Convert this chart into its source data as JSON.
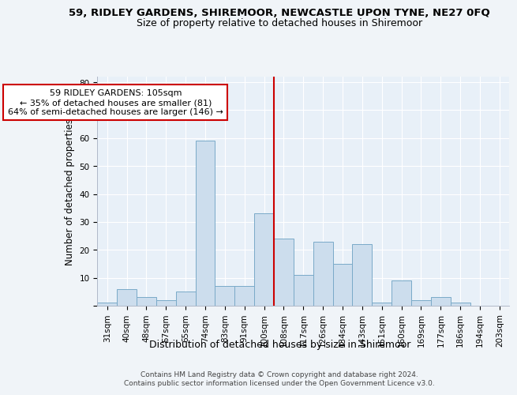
{
  "title": "59, RIDLEY GARDENS, SHIREMOOR, NEWCASTLE UPON TYNE, NE27 0FQ",
  "subtitle": "Size of property relative to detached houses in Shiremoor",
  "xlabel": "Distribution of detached houses by size in Shiremoor",
  "ylabel": "Number of detached properties",
  "categories": [
    "31sqm",
    "40sqm",
    "48sqm",
    "57sqm",
    "65sqm",
    "74sqm",
    "83sqm",
    "91sqm",
    "100sqm",
    "108sqm",
    "117sqm",
    "126sqm",
    "134sqm",
    "143sqm",
    "151sqm",
    "160sqm",
    "169sqm",
    "177sqm",
    "186sqm",
    "194sqm",
    "203sqm"
  ],
  "values": [
    1,
    6,
    3,
    2,
    5,
    59,
    7,
    7,
    33,
    24,
    11,
    23,
    15,
    22,
    1,
    9,
    2,
    3,
    1,
    0,
    0
  ],
  "bar_color": "#ccdded",
  "bar_edge_color": "#7aaac8",
  "vline_x": 9,
  "vline_color": "#cc0000",
  "annotation_text": "59 RIDLEY GARDENS: 105sqm\n← 35% of detached houses are smaller (81)\n64% of semi-detached houses are larger (146) →",
  "annotation_box_color": "#cc0000",
  "ylim": [
    0,
    82
  ],
  "yticks": [
    0,
    10,
    20,
    30,
    40,
    50,
    60,
    70,
    80
  ],
  "bg_color": "#f0f4f8",
  "plot_bg_color": "#e8f0f8",
  "footer1": "Contains HM Land Registry data © Crown copyright and database right 2024.",
  "footer2": "Contains public sector information licensed under the Open Government Licence v3.0.",
  "title_fontsize": 9.5,
  "subtitle_fontsize": 9,
  "xlabel_fontsize": 9,
  "ylabel_fontsize": 8.5,
  "tick_fontsize": 7.5,
  "annotation_fontsize": 8,
  "footer_fontsize": 6.5
}
